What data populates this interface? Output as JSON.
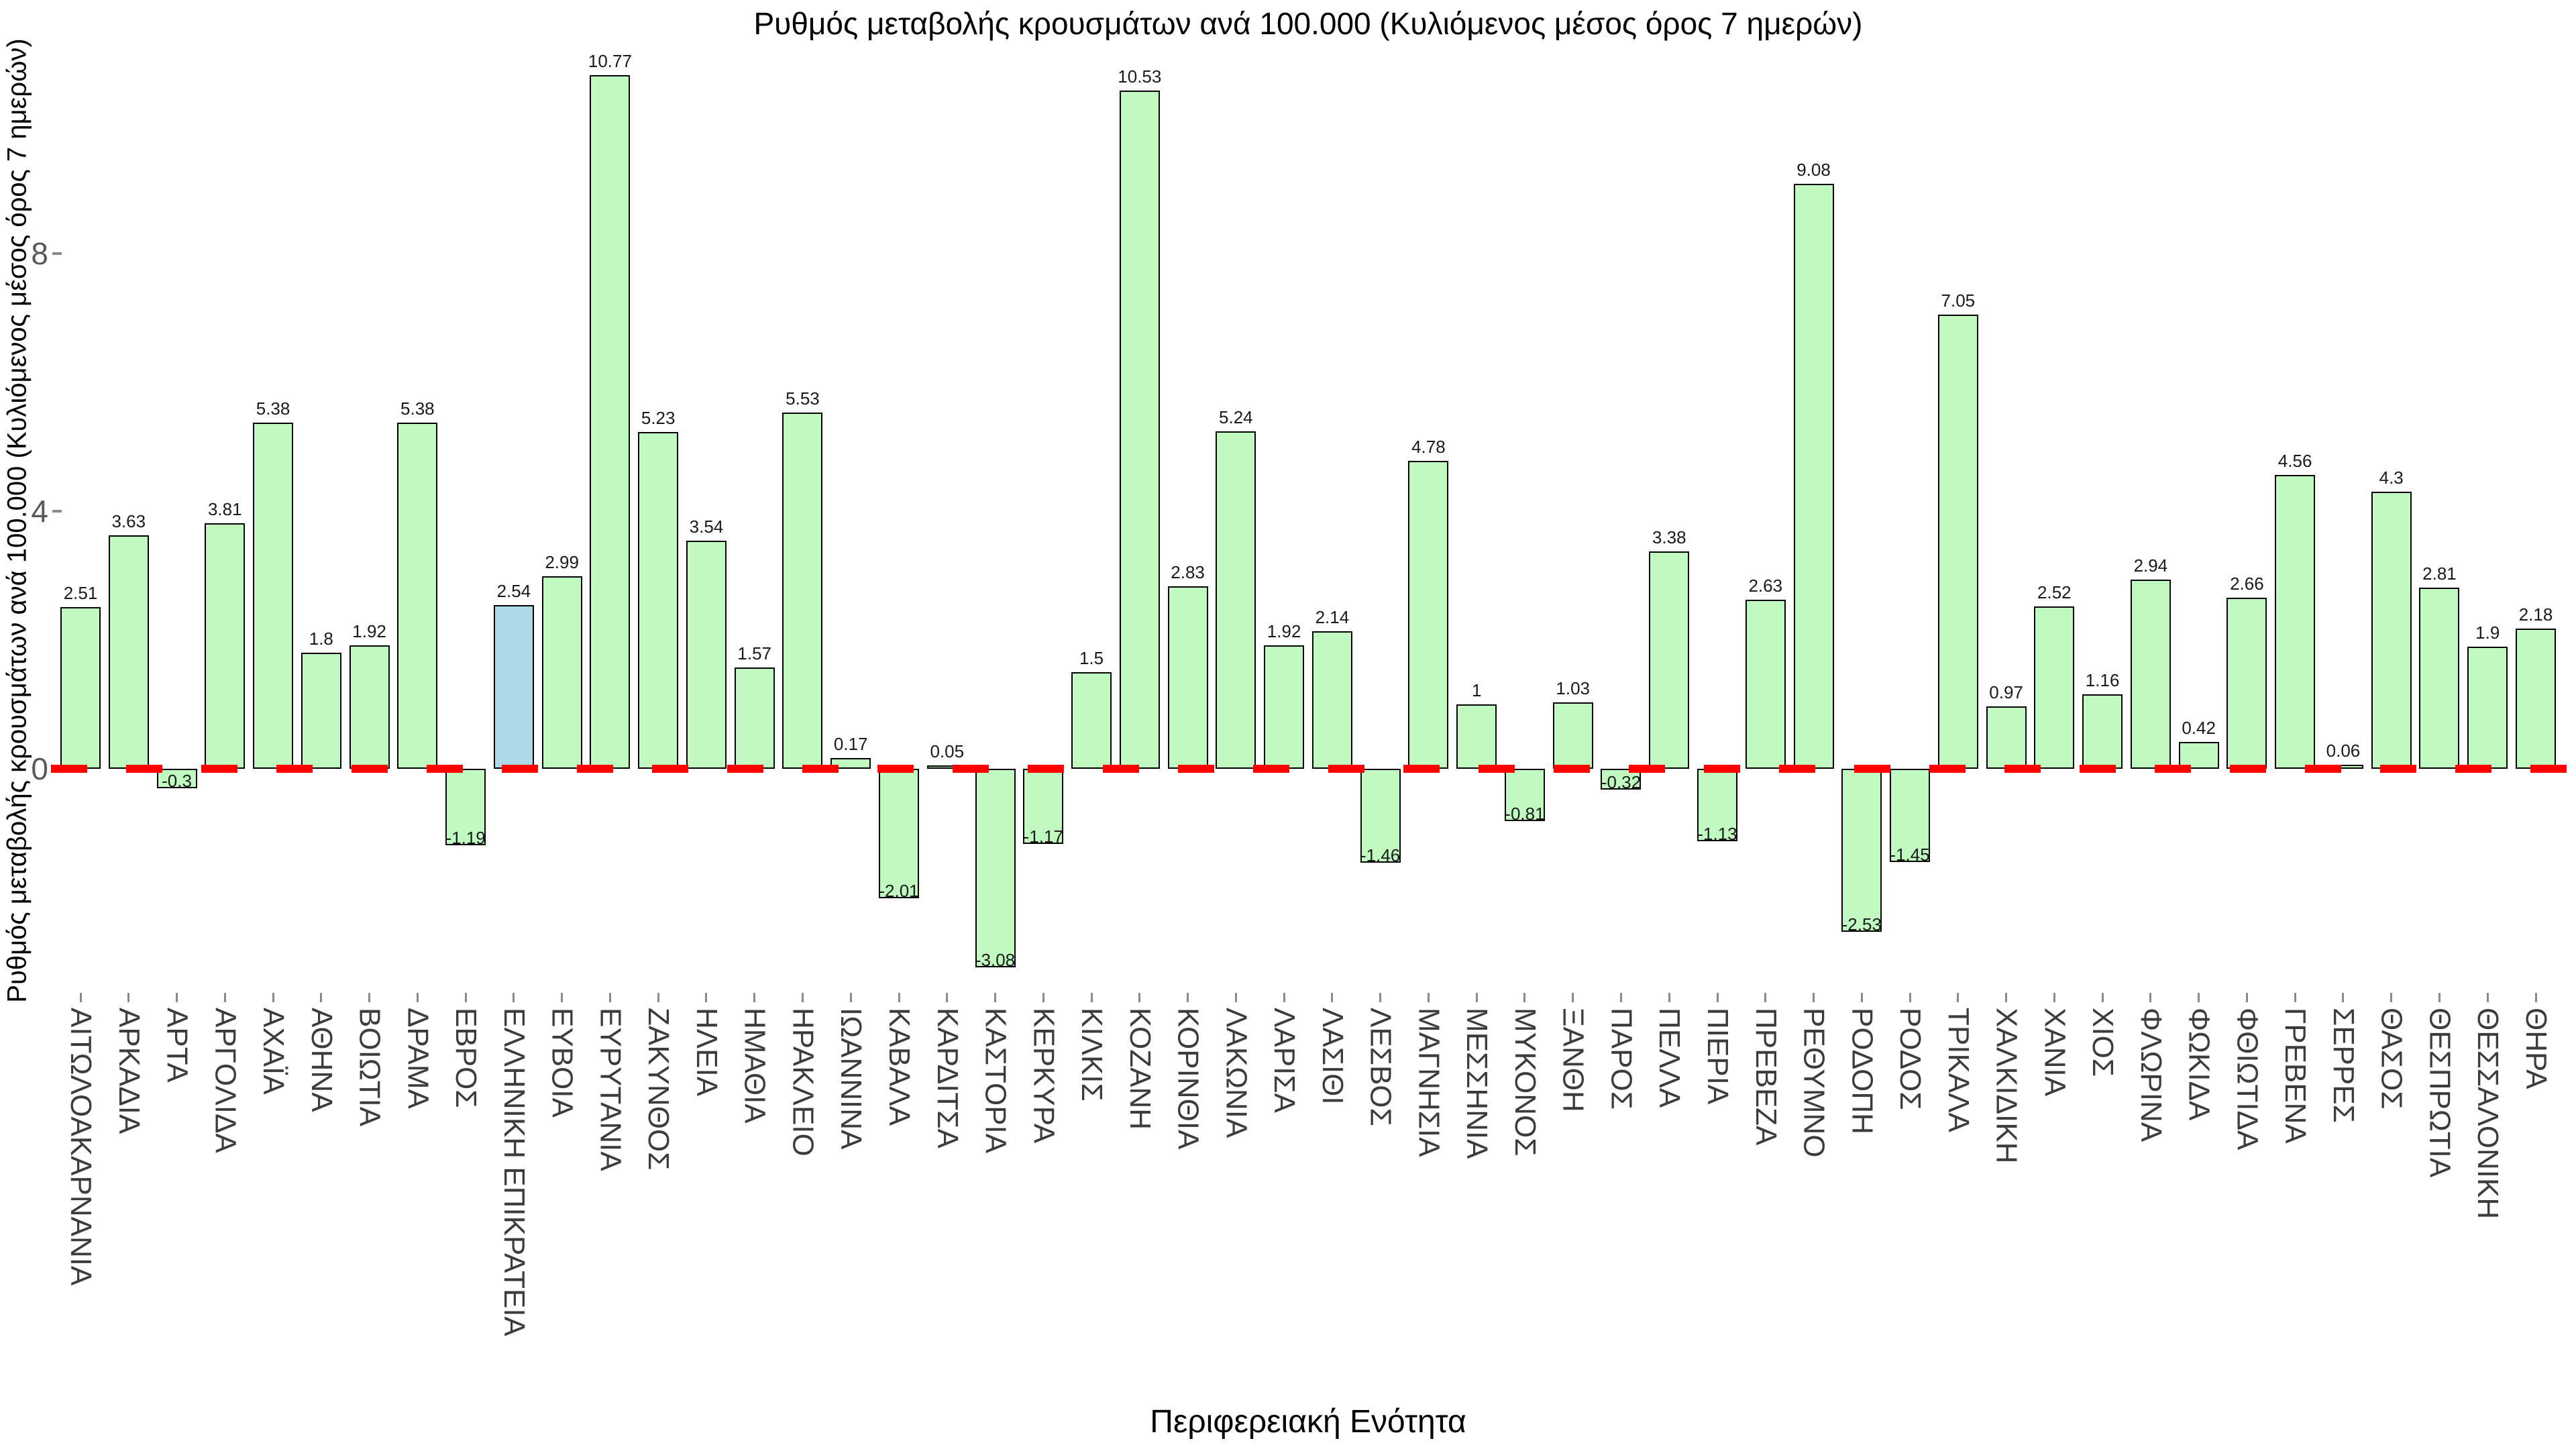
{
  "chart_data": {
    "type": "bar",
    "title": "Ρυθμός μεταβολής κρουσμάτων ανά 100.000 (Κυλιόμενος μέσος όρος 7 ημερών)",
    "xlabel": "Περιφερειακή Ενότητα",
    "ylabel": "Ρυθμός μεταβολής κρουσμάτων ανά 100.000 (Κυλιόμενος μέσος όρος 7 ημερών)",
    "categories": [
      "ΑΙΤΩΛΟΑΚΑΡΝΑΝΙΑ",
      "ΑΡΚΑΔΙΑ",
      "ΑΡΤΑ",
      "ΑΡΓΟΛΙΔΑ",
      "ΑΧΑΪΑ",
      "ΑΘΗΝΑ",
      "ΒΟΙΩΤΙΑ",
      "ΔΡΑΜΑ",
      "ΕΒΡΟΣ",
      "ΕΛΛΗΝΙΚΗ ΕΠΙΚΡΑΤΕΙΑ",
      "ΕΥΒΟΙΑ",
      "ΕΥΡΥΤΑΝΙΑ",
      "ΖΑΚΥΝΘΟΣ",
      "ΗΛΕΙΑ",
      "ΗΜΑΘΙΑ",
      "ΗΡΑΚΛΕΙΟ",
      "ΙΩΑΝΝΙΝΑ",
      "ΚΑΒΑΛΑ",
      "ΚΑΡΔΙΤΣΑ",
      "ΚΑΣΤΟΡΙΑ",
      "ΚΕΡΚΥΡΑ",
      "ΚΙΛΚΙΣ",
      "ΚΟΖΑΝΗ",
      "ΚΟΡΙΝΘΙΑ",
      "ΛΑΚΩΝΙΑ",
      "ΛΑΡΙΣΑ",
      "ΛΑΣΙΘΙ",
      "ΛΕΣΒΟΣ",
      "ΜΑΓΝΗΣΙΑ",
      "ΜΕΣΣΗΝΙΑ",
      "ΜΥΚΟΝΟΣ",
      "ΞΑΝΘΗ",
      "ΠΑΡΟΣ",
      "ΠΕΛΛΑ",
      "ΠΙΕΡΙΑ",
      "ΠΡΕΒΕΖΑ",
      "ΡΕΘΥΜΝΟ",
      "ΡΟΔΟΠΗ",
      "ΡΟΔΟΣ",
      "ΤΡΙΚΑΛΑ",
      "ΧΑΛΚΙΔΙΚΗ",
      "ΧΑΝΙΑ",
      "ΧΙΟΣ",
      "ΦΛΩΡΙΝΑ",
      "ΦΩΚΙΔΑ",
      "ΦΘΙΩΤΙΔΑ",
      "ΓΡΕΒΕΝΑ",
      "ΣΕΡΡΕΣ",
      "ΘΑΣΟΣ",
      "ΘΕΣΠΡΩΤΙΑ",
      "ΘΕΣΣΑΛΟΝΙΚΗ",
      "ΘΗΡΑ"
    ],
    "values": [
      2.51,
      3.63,
      -0.3,
      3.81,
      5.38,
      1.8,
      1.92,
      5.38,
      -1.19,
      2.54,
      2.99,
      10.77,
      5.23,
      3.54,
      1.57,
      5.53,
      0.17,
      -2.01,
      0.05,
      -3.08,
      -1.17,
      1.5,
      10.53,
      2.83,
      5.24,
      1.92,
      2.14,
      -1.46,
      4.78,
      1,
      -0.81,
      1.03,
      -0.32,
      3.38,
      -1.13,
      2.63,
      9.08,
      -2.53,
      -1.45,
      7.05,
      0.97,
      2.52,
      1.16,
      2.94,
      0.42,
      2.66,
      4.56,
      0.06,
      4.3,
      2.81,
      1.9,
      2.18
    ],
    "highlighted_category": "ΕΛΛΗΝΙΚΗ ΕΠΙΚΡΑΤΕΙΑ",
    "yticks": [
      0,
      4,
      8
    ],
    "ylim": [
      -3.6,
      11.3
    ],
    "grid": false,
    "legend": false,
    "zero_line_style": "dashed"
  },
  "colors": {
    "background": "#ffffff",
    "bar_fill": "#c0fac0",
    "bar_highlight_fill": "#add8e6",
    "bar_border": "#000000",
    "zero_line": "#ff0000",
    "value_label": "#1a1a1a",
    "x_tick_label": "#3c3c3c",
    "y_tick_label": "#595959",
    "title": "#000000"
  }
}
